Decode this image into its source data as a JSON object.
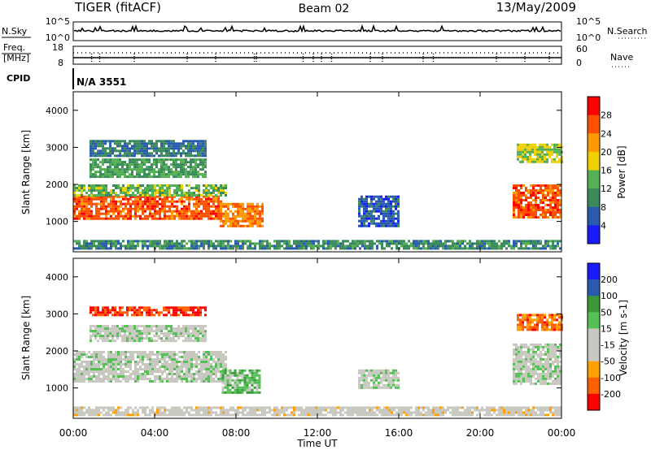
{
  "header": {
    "title": "TIGER (fitACF)",
    "beam": "Beam 02",
    "date": "13/May/2009"
  },
  "nsky_panel": {
    "left_label": "N.Sky",
    "left_ticks": [
      "10^5",
      "10^0"
    ],
    "right_label": "N.Search",
    "right_ticks": [
      "10^5",
      "10^0"
    ]
  },
  "freq_panel": {
    "left_label_line1": "Freq.",
    "left_label_line2": "[MHz]",
    "left_ticks": [
      "18",
      "8"
    ],
    "right_label": "Nave",
    "right_ticks": [
      "60",
      "0"
    ]
  },
  "cpid_panel": {
    "label": "CPID",
    "value": "N/A 3551"
  },
  "x_axis": {
    "label": "Time UT",
    "ticks": [
      "00:00",
      "04:00",
      "08:00",
      "12:00",
      "16:00",
      "20:00",
      "00:00"
    ]
  },
  "colors": {
    "power": [
      "#1a1aff",
      "#2a5ab0",
      "#3a8a5a",
      "#55b055",
      "#f0d000",
      "#ff9a00",
      "#ff5000",
      "#ff0000"
    ],
    "velocity": [
      "#ff0000",
      "#ff6000",
      "#ffa000",
      "#c8c8c0",
      "#c8c8c0",
      "#55c055",
      "#3a9a3a",
      "#2a5ab0",
      "#1a1aff"
    ]
  },
  "chart_data": [
    {
      "type": "heatmap",
      "panel": "power",
      "ylabel": "Slant Range [km]",
      "yticks": [
        "4000",
        "3000",
        "2000",
        "1000"
      ],
      "ylim": [
        180,
        4500
      ],
      "xlim": [
        0,
        24
      ],
      "colorbar_label": "Power [dB]",
      "colorbar_ticks": [
        "28",
        "24",
        "20",
        "16",
        "12",
        "8",
        "4"
      ],
      "colorbar_range": [
        0,
        32
      ],
      "regions": [
        {
          "t": [
            0,
            7.3
          ],
          "r": [
            1100,
            1700
          ],
          "level": 26
        },
        {
          "t": [
            0,
            7.5
          ],
          "r": [
            1700,
            2000
          ],
          "level": 14
        },
        {
          "t": [
            0.8,
            6.5
          ],
          "r": [
            2200,
            2700
          ],
          "level": 12
        },
        {
          "t": [
            0.8,
            6.5
          ],
          "r": [
            2800,
            3200
          ],
          "level": 8
        },
        {
          "t": [
            7.2,
            9.3
          ],
          "r": [
            900,
            1500
          ],
          "level": 24
        },
        {
          "t": [
            14.0,
            16.0
          ],
          "r": [
            900,
            1700
          ],
          "level": 6
        },
        {
          "t": [
            0,
            24
          ],
          "r": [
            250,
            500
          ],
          "level": 10
        },
        {
          "t": [
            21.6,
            24
          ],
          "r": [
            1100,
            2000
          ],
          "level": 26
        },
        {
          "t": [
            21.8,
            24
          ],
          "r": [
            2600,
            3100
          ],
          "level": 16
        }
      ]
    },
    {
      "type": "heatmap",
      "panel": "velocity",
      "ylabel": "Slant Range [km]",
      "yticks": [
        "4000",
        "3000",
        "2000",
        "1000"
      ],
      "ylim": [
        180,
        4500
      ],
      "xlim": [
        0,
        24
      ],
      "colorbar_label": "Velocity [m s-1]",
      "colorbar_ticks": [
        "200",
        "100",
        "50",
        "15",
        "-15",
        "-50",
        "-100",
        "-200"
      ],
      "colorbar_range": [
        -250,
        250
      ],
      "regions": [
        {
          "t": [
            0,
            7.5
          ],
          "r": [
            1150,
            2000
          ],
          "level": 0
        },
        {
          "t": [
            0.8,
            6.5
          ],
          "r": [
            2300,
            2700
          ],
          "level": 0
        },
        {
          "t": [
            0.8,
            6.5
          ],
          "r": [
            2950,
            3200
          ],
          "level": -200
        },
        {
          "t": [
            7.3,
            9.2
          ],
          "r": [
            900,
            1500
          ],
          "level": 60
        },
        {
          "t": [
            14.0,
            16.0
          ],
          "r": [
            1000,
            1500
          ],
          "level": 0
        },
        {
          "t": [
            0,
            24
          ],
          "r": [
            250,
            500
          ],
          "level": -40
        },
        {
          "t": [
            21.6,
            24
          ],
          "r": [
            1100,
            2200
          ],
          "level": 0
        },
        {
          "t": [
            21.8,
            24
          ],
          "r": [
            2600,
            3000
          ],
          "level": -150
        }
      ]
    }
  ]
}
